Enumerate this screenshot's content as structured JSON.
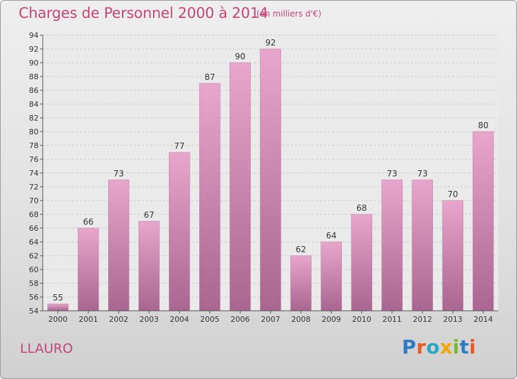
{
  "header": {
    "title": "Charges de Personnel 2000 à 2014",
    "subtitle": "(en milliers d'€)"
  },
  "footer": {
    "commune": "LLAURO",
    "logo_text": "Proxiti",
    "logo_colors": [
      "#2a7dc4",
      "#e65a24",
      "#2aa6c4",
      "#f0a800",
      "#7cb82f",
      "#2a7dc4",
      "#e65a24"
    ]
  },
  "colors": {
    "bar_top": "#e8a6cc",
    "bar_bottom": "#a86690",
    "accent": "#c44578"
  },
  "chart_data": {
    "type": "bar",
    "title": "Charges de Personnel 2000 à 2014",
    "subtitle": "(en milliers d'€)",
    "categories": [
      "2000",
      "2001",
      "2002",
      "2003",
      "2004",
      "2005",
      "2006",
      "2007",
      "2008",
      "2009",
      "2010",
      "2011",
      "2012",
      "2013",
      "2014"
    ],
    "values": [
      55,
      66,
      73,
      67,
      77,
      87,
      90,
      92,
      62,
      64,
      68,
      73,
      73,
      70,
      80
    ],
    "value_labels": [
      "55",
      "66",
      "73",
      "67",
      "77",
      "87",
      "90",
      "92",
      "62",
      "64",
      "68",
      "73",
      "73",
      "70",
      "80"
    ],
    "ylim": [
      54,
      94
    ],
    "yticks": [
      "54",
      "56",
      "58",
      "60",
      "62",
      "64",
      "66",
      "68",
      "70",
      "72",
      "74",
      "76",
      "78",
      "80",
      "82",
      "84",
      "86",
      "88",
      "90",
      "92",
      "94"
    ],
    "grid": true,
    "legend": "none"
  }
}
